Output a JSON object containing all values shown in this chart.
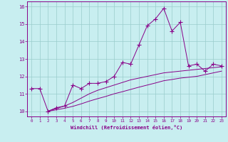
{
  "xlabel": "Windchill (Refroidissement éolien,°C)",
  "background_color": "#c8eef0",
  "line_color": "#880088",
  "grid_color": "#99cccc",
  "xlim": [
    -0.5,
    23.5
  ],
  "ylim": [
    9.7,
    16.3
  ],
  "xticks": [
    0,
    1,
    2,
    3,
    4,
    5,
    6,
    7,
    8,
    9,
    10,
    11,
    12,
    13,
    14,
    15,
    16,
    17,
    18,
    19,
    20,
    21,
    22,
    23
  ],
  "yticks": [
    10,
    11,
    12,
    13,
    14,
    15,
    16
  ],
  "curve1_x": [
    0,
    1,
    2,
    3,
    4,
    5,
    6,
    7,
    8,
    9,
    10,
    11,
    12,
    13,
    14,
    15,
    16,
    17,
    18,
    19,
    20,
    21,
    22,
    23
  ],
  "curve1_y": [
    11.3,
    11.3,
    10.0,
    10.2,
    10.3,
    11.5,
    11.3,
    11.6,
    11.6,
    11.7,
    12.0,
    12.8,
    12.7,
    13.8,
    14.9,
    15.3,
    15.9,
    14.6,
    15.1,
    12.6,
    12.7,
    12.3,
    12.7,
    12.6
  ],
  "curve2_x": [
    2,
    3,
    4,
    5,
    6,
    7,
    8,
    9,
    10,
    11,
    12,
    13,
    14,
    15,
    16,
    17,
    18,
    19,
    20,
    21,
    22,
    23
  ],
  "curve2_y": [
    10.0,
    10.15,
    10.3,
    10.5,
    10.75,
    11.0,
    11.2,
    11.35,
    11.5,
    11.65,
    11.8,
    11.9,
    12.0,
    12.1,
    12.2,
    12.25,
    12.3,
    12.35,
    12.4,
    12.45,
    12.5,
    12.55
  ],
  "curve3_x": [
    2,
    3,
    4,
    5,
    6,
    7,
    8,
    9,
    10,
    11,
    12,
    13,
    14,
    15,
    16,
    17,
    18,
    19,
    20,
    21,
    22,
    23
  ],
  "curve3_y": [
    10.0,
    10.08,
    10.17,
    10.28,
    10.42,
    10.58,
    10.72,
    10.85,
    11.0,
    11.12,
    11.25,
    11.38,
    11.5,
    11.62,
    11.75,
    11.82,
    11.9,
    11.95,
    12.0,
    12.1,
    12.2,
    12.3
  ]
}
